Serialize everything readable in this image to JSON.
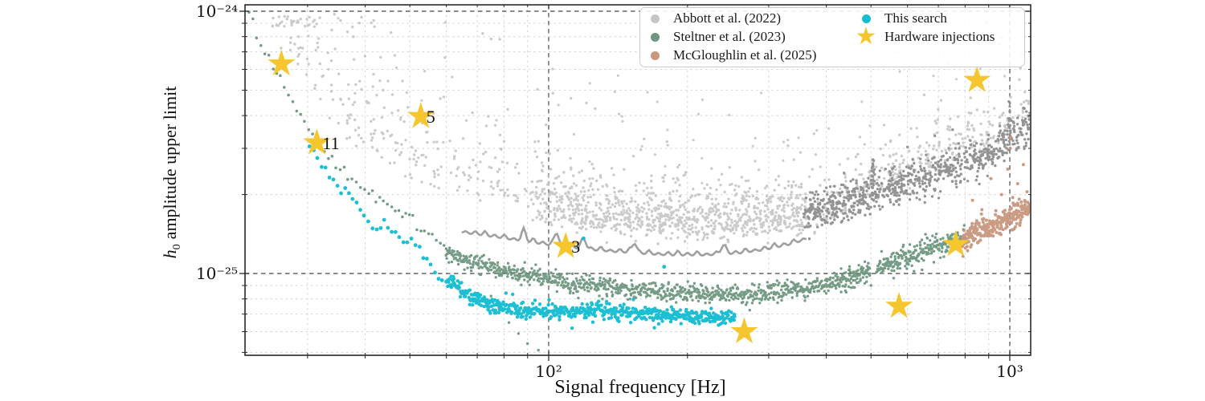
{
  "figure": {
    "background": "#ffffff"
  },
  "axes": {
    "xlabel": "Signal frequency [Hz]",
    "ylabel_italic": "h",
    "ylabel_sub": "0",
    "ylabel_rest": "amplitude upper limit"
  },
  "legend": {
    "items": [
      {
        "label": "Abbott et al. (2022)",
        "marker": "dot",
        "color": "#c6c6c6"
      },
      {
        "label": "Steltner et al. (2023)",
        "marker": "dot",
        "color": "#6e977f"
      },
      {
        "label": "McGloughlin et al. (2025)",
        "marker": "dot",
        "color": "#c9967e"
      },
      {
        "label": "This search",
        "marker": "dot",
        "color": "#15bdd2"
      },
      {
        "label": "Hardware injections",
        "marker": "star",
        "color": "#f6c62e",
        "marker_glyph": "★"
      }
    ]
  },
  "chart_data": {
    "type": "scatter",
    "title": "",
    "xlabel": "Signal frequency [Hz]",
    "ylabel": "h0 amplitude upper limit",
    "xscale": "log",
    "yscale": "log",
    "xlim": [
      21.9,
      1110
    ],
    "ylim": [
      4.8e-26,
      1.06e-24
    ],
    "grid": true,
    "legend_position": "upper center-right, 2 columns",
    "x_ticks": {
      "major": [
        {
          "v": 100,
          "label": "10²"
        },
        {
          "v": 1000,
          "label": "10³"
        }
      ],
      "minor": [
        30,
        40,
        50,
        60,
        70,
        80,
        90,
        200,
        300,
        400,
        500,
        600,
        700,
        800,
        900
      ]
    },
    "y_ticks": {
      "major": [
        {
          "v": 1e-24,
          "label": "10⁻²⁴"
        },
        {
          "v": 1e-25,
          "label": "10⁻²⁵"
        }
      ],
      "minor": [
        9e-25,
        8e-25,
        7e-25,
        6e-25,
        5e-25,
        4e-25,
        3e-25,
        2e-25,
        9e-26,
        8e-26,
        7e-26,
        6e-26,
        5e-26
      ]
    },
    "series": [
      {
        "name": "Abbott et al. (2022)",
        "kind": "scatter-cloud",
        "color": "#c7c7c7",
        "trend": [
          [
            24,
            7.5e-25
          ],
          [
            26,
            6.5e-25
          ],
          [
            30,
            5e-25
          ],
          [
            35,
            3.6e-25
          ],
          [
            40,
            2.9e-25
          ],
          [
            50,
            2.3e-25
          ],
          [
            60,
            2e-25
          ],
          [
            80,
            1.75e-25
          ],
          [
            100,
            1.55e-25
          ],
          [
            130,
            1.45e-25
          ],
          [
            200,
            1.4e-25
          ],
          [
            300,
            1.42e-25
          ],
          [
            400,
            1.55e-25
          ],
          [
            500,
            2e-25
          ],
          [
            650,
            2.4e-25
          ],
          [
            800,
            2.75e-25
          ],
          [
            950,
            3.1e-25
          ],
          [
            1100,
            3.8e-25
          ]
        ],
        "freq_range": [
          25,
          1100
        ]
      },
      {
        "name": "Steltner et al. (2023)",
        "kind": "scatter-band",
        "color": "#6e977f",
        "trend": [
          [
            22.4,
            1.02e-24
          ],
          [
            23.5,
            7.8e-25
          ],
          [
            25,
            6.2e-25
          ],
          [
            26.5,
            5.2e-25
          ],
          [
            28,
            4.4e-25
          ],
          [
            30,
            3.6e-25
          ],
          [
            32,
            3.05e-25
          ],
          [
            34,
            2.7e-25
          ],
          [
            36,
            2.45e-25
          ],
          [
            38,
            2.2e-25
          ],
          [
            40.5,
            2e-25
          ],
          [
            44,
            1.9e-25
          ],
          [
            48,
            1.72e-25
          ],
          [
            53,
            1.5e-25
          ],
          [
            58,
            1.28e-25
          ],
          [
            62,
            1.18e-25
          ],
          [
            70,
            1.09e-25
          ],
          [
            80,
            1.02e-25
          ],
          [
            90,
            9.8e-26
          ],
          [
            100,
            9.5e-26
          ],
          [
            115,
            9.2e-26
          ],
          [
            130,
            8.9e-26
          ],
          [
            160,
            8.6e-26
          ],
          [
            200,
            8.4e-26
          ],
          [
            250,
            8.3e-26
          ],
          [
            300,
            8.45e-26
          ],
          [
            350,
            8.7e-26
          ],
          [
            400,
            9.1e-26
          ],
          [
            450,
            9.6e-26
          ],
          [
            500,
            1.03e-25
          ],
          [
            570,
            1.13e-25
          ],
          [
            650,
            1.23e-25
          ],
          [
            740,
            1.31e-25
          ],
          [
            800,
            1.37e-25
          ]
        ],
        "gap_freq": [
          499,
          514
        ],
        "outliers": [
          [
            75,
            8.2e-26
          ],
          [
            78,
            7.4e-26
          ],
          [
            82,
            6.5e-26
          ],
          [
            86,
            5.9e-26
          ],
          [
            90,
            5.4e-26
          ],
          [
            95,
            5.1e-26
          ],
          [
            320,
            7.9e-26
          ],
          [
            360,
            8.1e-26
          ],
          [
            400,
            8.4e-26
          ],
          [
            440,
            8.6e-26
          ],
          [
            500,
            9e-26
          ],
          [
            560,
            9.6e-26
          ],
          [
            620,
            1.02e-25
          ]
        ]
      },
      {
        "name": "McGloughlin et al. (2025)",
        "kind": "scatter-band",
        "color": "#c9967e",
        "trend": [
          [
            790,
            1.35e-25
          ],
          [
            850,
            1.44e-25
          ],
          [
            950,
            1.55e-25
          ],
          [
            1000,
            1.62e-25
          ],
          [
            1050,
            1.7e-25
          ],
          [
            1110,
            1.8e-25
          ]
        ],
        "outliers": [
          [
            830,
            1.9e-25
          ],
          [
            870,
            1.75e-25
          ],
          [
            910,
            2.3e-25
          ],
          [
            960,
            2e-25
          ],
          [
            990,
            2.5e-25
          ],
          [
            1002,
            3e-25
          ],
          [
            1006,
            3.3e-25
          ],
          [
            1015,
            1.95e-25
          ],
          [
            1040,
            2.2e-25
          ],
          [
            1070,
            2.6e-25
          ],
          [
            1090,
            2.05e-25
          ]
        ]
      },
      {
        "name": "This search",
        "kind": "scatter-band",
        "color": "#15bdd2",
        "trend": [
          [
            30.3,
            3.16e-25
          ],
          [
            32.2,
            2.6e-25
          ],
          [
            34.2,
            2.21e-25
          ],
          [
            36.3,
            2.03e-25
          ],
          [
            38.5,
            1.83e-25
          ],
          [
            41.1,
            1.5e-25
          ],
          [
            42.7,
            1.45e-25
          ],
          [
            44.2,
            1.58e-25
          ],
          [
            46.3,
            1.43e-25
          ],
          [
            48.8,
            1.28e-25
          ],
          [
            50.2,
            1.35e-25
          ],
          [
            52.2,
            1.24e-25
          ],
          [
            54.9,
            1.1e-25
          ],
          [
            57.7,
            9.9e-26
          ],
          [
            60,
            8.9e-26
          ],
          [
            61.7,
            9.4e-26
          ],
          [
            64.6,
            8.6e-26
          ],
          [
            68.8,
            8e-26
          ],
          [
            74.5,
            7.6e-26
          ],
          [
            84,
            7.3e-26
          ],
          [
            100,
            7.1e-26
          ],
          [
            121,
            7.25e-26
          ],
          [
            148,
            7.05e-26
          ],
          [
            180,
            6.9e-26
          ],
          [
            212,
            6.85e-26
          ],
          [
            254,
            6.8e-26
          ]
        ],
        "outliers": [
          [
            119,
            1.36e-25
          ],
          [
            178,
            1.06e-25
          ]
        ]
      },
      {
        "name": "Hardware injections",
        "kind": "star-markers",
        "color": "#f6c62e",
        "points": [
          {
            "freq": 26.33,
            "h0": 6.3e-25,
            "label": ""
          },
          {
            "freq": 31.42,
            "h0": 3.15e-25,
            "label": "11"
          },
          {
            "freq": 52.8,
            "h0": 3.97e-25,
            "label": "5"
          },
          {
            "freq": 108.86,
            "h0": 1.27e-25,
            "label": "3"
          },
          {
            "freq": 265.58,
            "h0": 6e-26,
            "label": ""
          },
          {
            "freq": 575.16,
            "h0": 7.5e-26,
            "label": ""
          },
          {
            "freq": 763.85,
            "h0": 1.29e-25,
            "label": ""
          },
          {
            "freq": 848.93,
            "h0": 5.45e-25,
            "label": ""
          }
        ]
      }
    ],
    "aux_series": [
      {
        "name": "abbott-dense-gray-band",
        "kind": "scatter-band",
        "color": "#8f8f8f",
        "trend": [
          [
            357,
            1.62e-25
          ],
          [
            436,
            1.8e-25
          ],
          [
            535,
            2e-25
          ],
          [
            650,
            2.2e-25
          ],
          [
            800,
            2.5e-25
          ],
          [
            900,
            2.75e-25
          ],
          [
            1000,
            3.1e-25
          ],
          [
            1050,
            3.35e-25
          ],
          [
            1110,
            3.6e-25
          ]
        ],
        "spikes": [
          {
            "freq": 505,
            "amp_dex": 0.15,
            "n": 22
          },
          {
            "freq": 838,
            "amp_dex": 0.08,
            "n": 10
          },
          {
            "freq": 1000,
            "amp_dex": 0.16,
            "n": 18
          }
        ]
      },
      {
        "name": "abbott-solid-gray-curve",
        "kind": "line",
        "color": "#9b9b9b",
        "points": [
          [
            64.8,
            1.43e-25
          ],
          [
            77.0,
            1.37e-25
          ],
          [
            91.2,
            1.31e-25
          ],
          [
            107,
            1.26e-25
          ],
          [
            128,
            1.22e-25
          ],
          [
            154,
            1.19e-25
          ],
          [
            184,
            1.17e-25
          ],
          [
            220,
            1.17e-25
          ],
          [
            258,
            1.19e-25
          ],
          [
            297,
            1.23e-25
          ],
          [
            336,
            1.29e-25
          ],
          [
            364,
            1.35e-25
          ]
        ],
        "major_spikes": [
          {
            "freq": 88.3,
            "amp_dex": 0.04
          },
          {
            "freq": 104.1,
            "amp_dex": 0.049
          },
          {
            "freq": 119.3,
            "amp_dex": 0.034
          },
          {
            "freq": 153.6,
            "amp_dex": 0.037
          },
          {
            "freq": 238.9,
            "amp_dex": 0.03
          }
        ]
      }
    ]
  }
}
